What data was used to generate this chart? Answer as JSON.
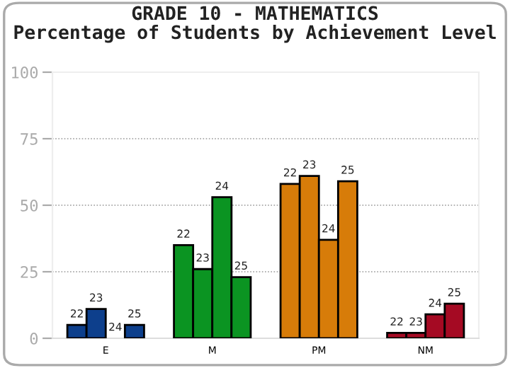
{
  "chart_data": {
    "type": "bar",
    "title": "GRADE 10 - MATHEMATICS\nPercentage of Students by Achievement Level",
    "categories": [
      "E",
      "M",
      "PM",
      "NM"
    ],
    "series": [
      {
        "name": "22",
        "colors": [
          "#0d3f8c",
          "#0b9422",
          "#d77c09",
          "#a50a23"
        ],
        "values": [
          5,
          35,
          58,
          2
        ]
      },
      {
        "name": "23",
        "colors": [
          "#0d3f8c",
          "#0b9422",
          "#d77c09",
          "#a50a23"
        ],
        "values": [
          11,
          26,
          61,
          2
        ]
      },
      {
        "name": "24",
        "colors": [
          "#0d3f8c",
          "#0b9422",
          "#d77c09",
          "#a50a23"
        ],
        "values": [
          0,
          53,
          37,
          9
        ]
      },
      {
        "name": "25",
        "colors": [
          "#0d3f8c",
          "#0b9422",
          "#d77c09",
          "#a50a23"
        ],
        "values": [
          5,
          23,
          59,
          13
        ]
      }
    ],
    "ylim": [
      0,
      100
    ],
    "yticks": [
      0,
      25,
      50,
      75,
      100
    ],
    "grid": "y",
    "legend": false
  }
}
